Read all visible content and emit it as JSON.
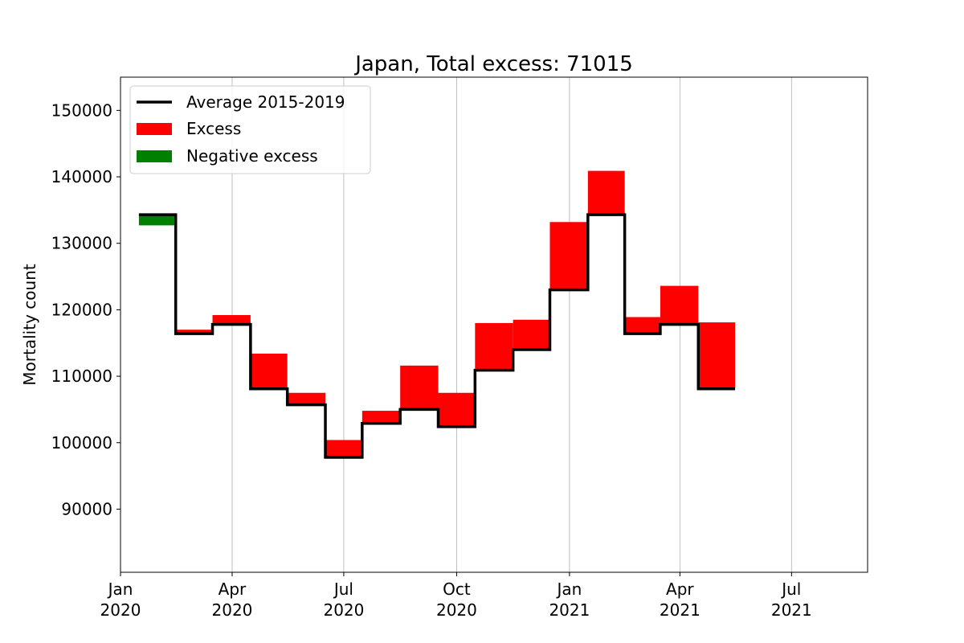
{
  "chart_data": {
    "type": "bar",
    "title": "Japan, Total excess: 71015",
    "xlabel": "",
    "ylabel": "Mortality count",
    "xlim": [
      "2020-01-01",
      "2021-09-01"
    ],
    "ylim": [
      80500,
      155000
    ],
    "yticks": [
      90000,
      100000,
      110000,
      120000,
      130000,
      140000,
      150000
    ],
    "xticks": [
      {
        "date": "2020-01-01",
        "line1": "Jan",
        "line2": "2020"
      },
      {
        "date": "2020-04-01",
        "line1": "Apr",
        "line2": "2020"
      },
      {
        "date": "2020-07-01",
        "line1": "Jul",
        "line2": "2020"
      },
      {
        "date": "2020-10-01",
        "line1": "Oct",
        "line2": "2020"
      },
      {
        "date": "2021-01-01",
        "line1": "Jan",
        "line2": "2021"
      },
      {
        "date": "2021-04-01",
        "line1": "Apr",
        "line2": "2021"
      },
      {
        "date": "2021-07-01",
        "line1": "Jul",
        "line2": "2021"
      }
    ],
    "grid": "vertical",
    "legend_placement": "top-left",
    "legend": [
      {
        "label": "Average 2015-2019",
        "kind": "line",
        "color": "#000000"
      },
      {
        "label": "Excess",
        "kind": "patch",
        "color": "#ff0000"
      },
      {
        "label": "Negative excess",
        "kind": "patch",
        "color": "#008000"
      }
    ],
    "colors": {
      "average": "#000000",
      "excess": "#ff0000",
      "negative": "#008000"
    },
    "periods": [
      {
        "start": "2020-01-16",
        "end": "2020-02-15",
        "average": 134300,
        "actual": 132700
      },
      {
        "start": "2020-02-15",
        "end": "2020-03-16",
        "average": 116400,
        "actual": 117000
      },
      {
        "start": "2020-03-16",
        "end": "2020-04-16",
        "average": 117800,
        "actual": 119200
      },
      {
        "start": "2020-04-16",
        "end": "2020-05-16",
        "average": 108100,
        "actual": 113400
      },
      {
        "start": "2020-05-16",
        "end": "2020-06-16",
        "average": 105700,
        "actual": 107500
      },
      {
        "start": "2020-06-16",
        "end": "2020-07-16",
        "average": 97800,
        "actual": 100400
      },
      {
        "start": "2020-07-16",
        "end": "2020-08-16",
        "average": 102900,
        "actual": 104800
      },
      {
        "start": "2020-08-16",
        "end": "2020-09-16",
        "average": 105000,
        "actual": 111600
      },
      {
        "start": "2020-09-16",
        "end": "2020-10-16",
        "average": 102400,
        "actual": 107500
      },
      {
        "start": "2020-10-16",
        "end": "2020-11-16",
        "average": 110900,
        "actual": 118000
      },
      {
        "start": "2020-11-16",
        "end": "2020-12-16",
        "average": 114000,
        "actual": 118500
      },
      {
        "start": "2020-12-16",
        "end": "2021-01-16",
        "average": 123000,
        "actual": 133200
      },
      {
        "start": "2021-01-16",
        "end": "2021-02-15",
        "average": 134300,
        "actual": 140900
      },
      {
        "start": "2021-02-15",
        "end": "2021-03-16",
        "average": 116400,
        "actual": 118900
      },
      {
        "start": "2021-03-16",
        "end": "2021-04-16",
        "average": 117800,
        "actual": 123600
      },
      {
        "start": "2021-04-16",
        "end": "2021-05-16",
        "average": 108100,
        "actual": 118100
      }
    ]
  }
}
